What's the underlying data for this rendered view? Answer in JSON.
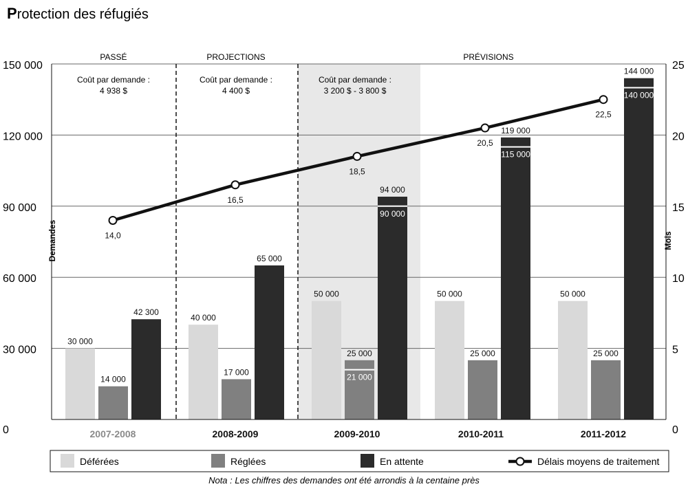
{
  "colors": {
    "deferees": "#d9d9d9",
    "reglees": "#808080",
    "en_attente": "#2b2b2b",
    "shade": "#e8e8e8",
    "line": "#111111"
  },
  "title_initial": "P",
  "title_rest": "rotection des réfugiés",
  "periods": [
    {
      "label": "PASSÉ",
      "cost_title": "Coût par demande :",
      "cost_value": "4 938 $"
    },
    {
      "label": "PROJECTIONS",
      "cost_title": "Coût par demande :",
      "cost_value": "4 400 $"
    },
    {
      "label": "PRÉVISIONS",
      "cost_title": "Coût par demande :",
      "cost_value": "3 200 $ - 3 800 $"
    }
  ],
  "legend": [
    {
      "label": "Déférées",
      "type": "box",
      "color_key": "deferees"
    },
    {
      "label": "Réglées",
      "type": "box",
      "color_key": "reglees"
    },
    {
      "label": "En attente",
      "type": "box",
      "color_key": "en_attente"
    },
    {
      "label": "Délais moyens de traitement",
      "type": "line",
      "color_key": "line"
    }
  ],
  "note": "Nota : Les chiffres des demandes ont été arrondis à la centaine près",
  "chart_data": {
    "type": "bar",
    "title": "Protection des réfugiés",
    "categories": [
      "2007-2008",
      "2008-2009",
      "2009-2010",
      "2010-2011",
      "2011-2012"
    ],
    "first_category_style": "grey",
    "series": [
      {
        "name": "Déférées",
        "values": [
          30000,
          40000,
          50000,
          50000,
          50000
        ],
        "labels": [
          "30 000",
          "40 000",
          "50 000",
          "50 000",
          "50 000"
        ]
      },
      {
        "name": "Réglées",
        "values": [
          14000,
          17000,
          25000,
          25000,
          25000
        ],
        "labels": [
          "14 000",
          "17 000",
          "25 000",
          "25 000",
          "25 000"
        ],
        "inner_values": [
          null,
          null,
          21000,
          null,
          null
        ],
        "inner_labels": [
          null,
          null,
          "21 000",
          null,
          null
        ]
      },
      {
        "name": "En attente",
        "values": [
          42300,
          65000,
          94000,
          119000,
          144000
        ],
        "labels": [
          "42 300",
          "65 000",
          "94 000",
          "119 000",
          "144 000"
        ],
        "inner_values": [
          null,
          null,
          90000,
          115000,
          140000
        ],
        "inner_labels": [
          null,
          null,
          "90 000",
          "115 000",
          "140 000"
        ]
      }
    ],
    "line_series": {
      "name": "Délais moyens de traitement",
      "values": [
        14.0,
        16.5,
        18.5,
        20.5,
        22.5
      ],
      "labels": [
        "14,0",
        "16,5",
        "18,5",
        "20,5",
        "22,5"
      ]
    },
    "ylabel_left": "Demandes",
    "ylabel_right": "Mois",
    "ylim_left": [
      0,
      150000
    ],
    "ylim_right": [
      0,
      25
    ],
    "left_ticks": [
      0,
      30000,
      60000,
      90000,
      120000,
      150000
    ],
    "left_tick_labels": [
      "0",
      "30 000",
      "60 000",
      "90 000",
      "120 000",
      "150 000"
    ],
    "right_ticks": [
      0,
      5,
      10,
      15,
      20,
      25
    ],
    "right_tick_labels": [
      "0",
      "5",
      "10",
      "15",
      "20",
      "25"
    ],
    "grid": true,
    "legend_position": "bottom"
  }
}
